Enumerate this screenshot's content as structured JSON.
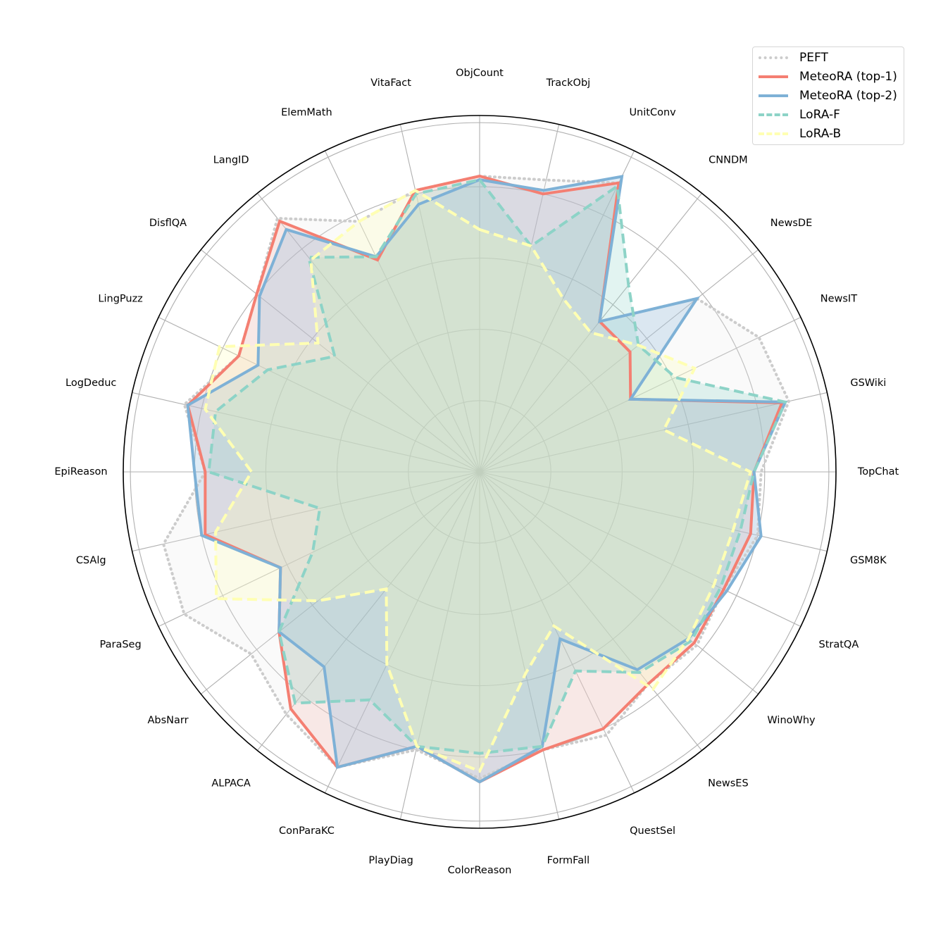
{
  "chart_data": {
    "type": "radar",
    "categories": [
      "ObjCount",
      "TrackObj",
      "UnitConv",
      "CNNDM",
      "NewsDE",
      "NewsIT",
      "GSWiki",
      "TopChat",
      "GSM8K",
      "StratQA",
      "WinoWhy",
      "NewsES",
      "QuestSel",
      "FormFall",
      "ColorReason",
      "PlayDiag",
      "ConParaKC",
      "ALPACA",
      "AbsNarr",
      "ParaSeg",
      "CSAlg",
      "EpiReason",
      "LogDeduc",
      "LingPuzz",
      "DisflQA",
      "LangID",
      "ElemMath",
      "VitaFact"
    ],
    "rlim": [
      0,
      1
    ],
    "grid": true,
    "legend_position": "top-right",
    "series": [
      {
        "name": "PEFT",
        "color": "#cccccc",
        "style": "dotted",
        "fill": "#ececec",
        "values": [
          0.83,
          0.84,
          0.9,
          0.54,
          0.78,
          0.87,
          0.89,
          0.79,
          0.8,
          0.76,
          0.78,
          0.76,
          0.82,
          0.8,
          0.86,
          0.8,
          0.92,
          0.87,
          0.82,
          0.92,
          0.91,
          0.77,
          0.85,
          0.75,
          0.8,
          0.91,
          0.78,
          0.81
        ]
      },
      {
        "name": "MeteoRA (top-1)",
        "color": "#f47f72",
        "style": "solid",
        "fill": "#f4b3ac",
        "values": [
          0.83,
          0.8,
          0.9,
          0.54,
          0.54,
          0.47,
          0.87,
          0.77,
          0.78,
          0.76,
          0.77,
          0.76,
          0.8,
          0.8,
          0.87,
          0.79,
          0.92,
          0.85,
          0.72,
          0.62,
          0.79,
          0.77,
          0.84,
          0.75,
          0.8,
          0.9,
          0.66,
          0.81
        ]
      },
      {
        "name": "MeteoRA (top-2)",
        "color": "#7eb1d6",
        "style": "solid",
        "fill": "#7eb1d6",
        "values": [
          0.82,
          0.81,
          0.92,
          0.54,
          0.78,
          0.47,
          0.88,
          0.77,
          0.81,
          0.77,
          0.75,
          0.71,
          0.52,
          0.79,
          0.87,
          0.79,
          0.92,
          0.7,
          0.72,
          0.62,
          0.8,
          0.8,
          0.84,
          0.69,
          0.79,
          0.87,
          0.67,
          0.77
        ]
      },
      {
        "name": "LoRA-F",
        "color": "#8dd3c7",
        "style": "dashed",
        "fill": "#8dd3c7",
        "values": [
          0.82,
          0.65,
          0.89,
          0.67,
          0.57,
          0.61,
          0.88,
          0.77,
          0.75,
          0.75,
          0.76,
          0.72,
          0.62,
          0.79,
          0.79,
          0.79,
          0.71,
          0.83,
          0.72,
          0.52,
          0.46,
          0.76,
          0.76,
          0.66,
          0.52,
          0.77,
          0.67,
          0.8
        ]
      },
      {
        "name": "LoRA-B",
        "color": "#ffffb3",
        "style": "dashed",
        "fill": "#ffffb3",
        "values": [
          0.68,
          0.65,
          0.54,
          0.5,
          0.57,
          0.67,
          0.53,
          0.76,
          0.73,
          0.73,
          0.75,
          0.78,
          0.48,
          0.58,
          0.84,
          0.79,
          0.6,
          0.42,
          0.58,
          0.82,
          0.76,
          0.64,
          0.79,
          0.81,
          0.58,
          0.76,
          0.78,
          0.81
        ]
      }
    ]
  }
}
